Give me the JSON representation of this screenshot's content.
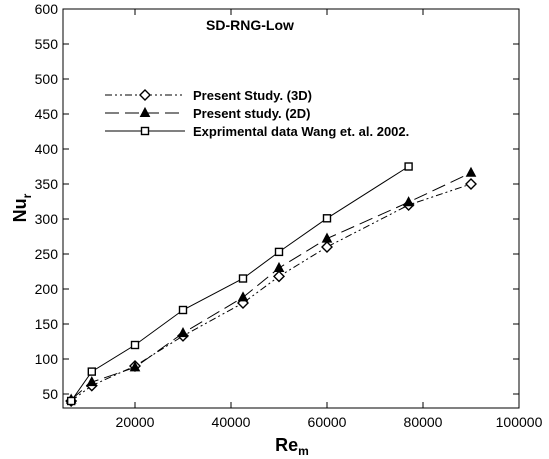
{
  "chart_data": {
    "type": "line",
    "title": "SD-RNG-Low",
    "xlabel": "Re",
    "xlabel_sub": "m",
    "ylabel": "Nu",
    "ylabel_sub": "r",
    "xlim": [
      5000,
      100000
    ],
    "ylim": [
      30,
      600
    ],
    "xticks": [
      20000,
      40000,
      60000,
      80000,
      100000
    ],
    "yticks": [
      50,
      100,
      150,
      200,
      250,
      300,
      350,
      400,
      450,
      500,
      550,
      600
    ],
    "grid": false,
    "legend_position": "top-left",
    "series": [
      {
        "name": "Present Study. (3D)",
        "marker": "diamond",
        "line_style": "dash-dot-dot",
        "x": [
          6700,
          11000,
          20000,
          30000,
          42500,
          50000,
          60000,
          77000,
          90000
        ],
        "y": [
          40,
          62,
          90,
          133,
          180,
          218,
          260,
          320,
          350
        ]
      },
      {
        "name": "Present study. (2D)",
        "marker": "triangle",
        "line_style": "dashed",
        "x": [
          6700,
          11000,
          20000,
          30000,
          42500,
          50000,
          60000,
          77000,
          90000
        ],
        "y": [
          42,
          67,
          88,
          137,
          188,
          230,
          272,
          324,
          366
        ]
      },
      {
        "name": "Exprimental data Wang et. al. 2002.",
        "marker": "square",
        "line_style": "solid",
        "x": [
          6700,
          11000,
          20000,
          30000,
          42500,
          50000,
          60000,
          77000
        ],
        "y": [
          40,
          82,
          120,
          170,
          215,
          253,
          301,
          375
        ]
      }
    ]
  }
}
